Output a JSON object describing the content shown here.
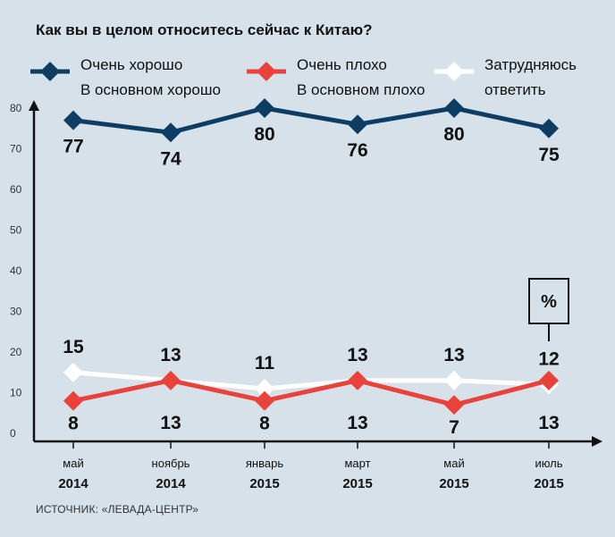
{
  "title": "Как вы в целом относитесь сейчас к Китаю?",
  "legend": [
    {
      "line1": "Очень хорошо",
      "line2": "В основном хорошо",
      "color": "#0d3d63"
    },
    {
      "line1": "Очень плохо",
      "line2": "В основном плохо",
      "color": "#e8423a"
    },
    {
      "line1": "Затрудняюсь",
      "line2": "ответить",
      "color": "#ffffff"
    }
  ],
  "source": "ИСТОЧНИК: «ЛЕВАДА-ЦЕНТР»",
  "unit_label": "%",
  "chart_data": {
    "type": "line",
    "title": "Как вы в целом относитесь сейчас к Китаю?",
    "categories": [
      {
        "month": "май",
        "year": "2014"
      },
      {
        "month": "ноябрь",
        "year": "2014"
      },
      {
        "month": "январь",
        "year": "2015"
      },
      {
        "month": "март",
        "year": "2015"
      },
      {
        "month": "май",
        "year": "2015"
      },
      {
        "month": "июль",
        "year": "2015"
      }
    ],
    "ylim": [
      0,
      80
    ],
    "yticks": [
      0,
      10,
      20,
      30,
      40,
      50,
      60,
      70,
      80
    ],
    "series": [
      {
        "name": "Очень хорошо / В основном хорошо",
        "color": "#0d3d63",
        "values": [
          77,
          74,
          80,
          76,
          80,
          75
        ]
      },
      {
        "name": "Очень плохо / В основном плохо",
        "color": "#e8423a",
        "values": [
          8,
          13,
          8,
          13,
          7,
          13
        ]
      },
      {
        "name": "Затрудняюсь ответить",
        "color": "#ffffff",
        "values": [
          15,
          13,
          11,
          13,
          13,
          12
        ]
      }
    ]
  }
}
